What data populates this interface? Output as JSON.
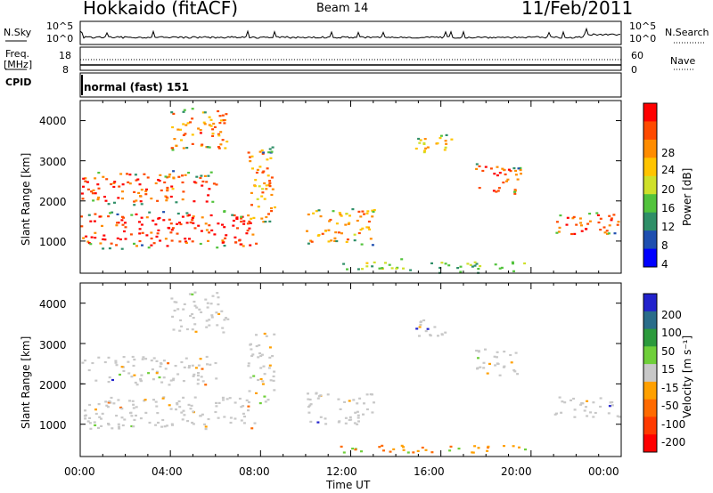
{
  "header": {
    "station": "Hokkaido (fitACF)",
    "beam": "Beam 14",
    "date": "11/Feb/2011"
  },
  "sky_panel": {
    "left_label": "N.Sky",
    "ticks_left": [
      "10^5",
      "10^0"
    ],
    "ticks_right": [
      "10^5",
      "10^0"
    ],
    "right_label": "N.Search"
  },
  "freq_panel": {
    "left_label_1": "Freq.",
    "left_label_2": "[MHz]",
    "ticks_left": [
      "18",
      "8"
    ],
    "ticks_right": [
      "60",
      "0"
    ],
    "right_label": "Nave"
  },
  "cpid": {
    "label": "CPID",
    "value": "normal (fast) 151"
  },
  "x_axis": {
    "label": "Time UT",
    "ticks": [
      "00:00",
      "04:00",
      "08:00",
      "12:00",
      "16:00",
      "20:00",
      "00:00"
    ]
  },
  "chart_data": [
    {
      "type": "heatmap",
      "name": "power",
      "ylabel": "Slant Range [km]",
      "xlabel": "Time UT",
      "xlim_hours": [
        0,
        24
      ],
      "ylim": [
        200,
        4500
      ],
      "yticks": [
        "1000",
        "2000",
        "3000",
        "4000"
      ],
      "colorbar": {
        "label": "Power [dB]",
        "ticks": [
          "28",
          "24",
          "20",
          "16",
          "12",
          "8",
          "4"
        ],
        "colors": [
          "#ff0000",
          "#ff4a00",
          "#ff8c00",
          "#ffc400",
          "#cfe02a",
          "#52c33c",
          "#2f8f68",
          "#1f4fb0",
          "#0000ff"
        ]
      },
      "echo_regions": [
        {
          "t0": 0.0,
          "t1": 7.8,
          "r0": 900,
          "r1": 1700,
          "level": 28
        },
        {
          "t0": 0.0,
          "t1": 6.0,
          "r0": 2000,
          "r1": 2700,
          "level": 26
        },
        {
          "t0": 4.0,
          "t1": 6.5,
          "r0": 3300,
          "r1": 4300,
          "level": 24
        },
        {
          "t0": 7.4,
          "t1": 8.6,
          "r0": 1500,
          "r1": 3300,
          "level": 22
        },
        {
          "t0": 10.0,
          "t1": 13.0,
          "r0": 1000,
          "r1": 1800,
          "level": 22
        },
        {
          "t0": 11.5,
          "t1": 20.0,
          "r0": 300,
          "r1": 500,
          "level": 14
        },
        {
          "t0": 14.5,
          "t1": 16.5,
          "r0": 3200,
          "r1": 3600,
          "level": 20
        },
        {
          "t0": 17.5,
          "t1": 19.5,
          "r0": 2200,
          "r1": 2900,
          "level": 26
        },
        {
          "t0": 21.0,
          "t1": 24.0,
          "r0": 1200,
          "r1": 1700,
          "level": 26
        }
      ]
    },
    {
      "type": "heatmap",
      "name": "velocity",
      "ylabel": "Slant Range [km]",
      "xlabel": "Time UT",
      "xlim_hours": [
        0,
        24
      ],
      "ylim": [
        200,
        4500
      ],
      "yticks": [
        "1000",
        "2000",
        "3000",
        "4000"
      ],
      "colorbar": {
        "label": "Velocity [m s⁻¹]",
        "ticks": [
          "200",
          "100",
          "50",
          "15",
          "-15",
          "-50",
          "-100",
          "-200"
        ],
        "colors": [
          "#2222cc",
          "#2a6d8a",
          "#2c9a3c",
          "#6fcf3a",
          "#c8c8c8",
          "#ffa000",
          "#ff6a00",
          "#ff3a00",
          "#ff0000"
        ]
      }
    }
  ]
}
